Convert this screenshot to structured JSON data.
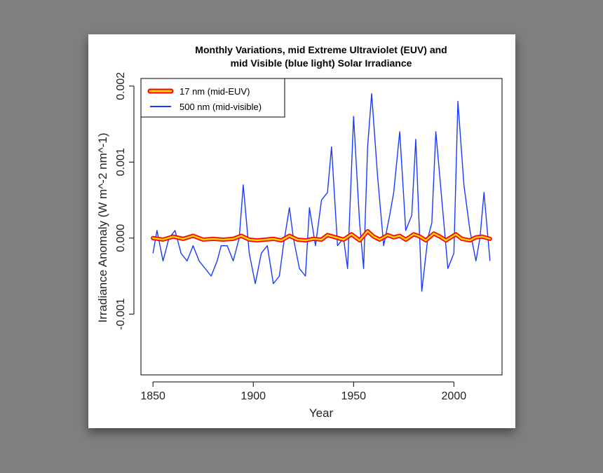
{
  "chart_data": {
    "type": "line",
    "title_line1": "Monthly Variations, mid Extreme Ultraviolet (EUV) and",
    "title_line2": "mid Visible (blue light) Solar Irradiance",
    "xlabel": "Year",
    "ylabel": "Irradiance Anomaly (W m^-2 nm^-1)",
    "xlim": [
      1844,
      2024
    ],
    "ylim": [
      -0.0018,
      0.0021
    ],
    "x_ticks": [
      1850,
      1900,
      1950,
      2000
    ],
    "x_tick_labels": [
      "1850",
      "1900",
      "1950",
      "2000"
    ],
    "y_ticks": [
      -0.001,
      0.0,
      0.001,
      0.002
    ],
    "y_tick_labels": [
      "-0.001",
      "0.000",
      "0.001",
      "0.002"
    ],
    "legend_position": "top-left",
    "grid": false,
    "series": [
      {
        "name": "17 nm (mid-EUV)",
        "color": "#ff0000",
        "inner_color": "#ffd400",
        "x": [
          1850,
          1855,
          1860,
          1865,
          1870,
          1875,
          1880,
          1885,
          1890,
          1894,
          1898,
          1902,
          1906,
          1910,
          1914,
          1918,
          1922,
          1926,
          1930,
          1934,
          1937,
          1941,
          1945,
          1949,
          1953,
          1957,
          1960,
          1963,
          1967,
          1970,
          1973,
          1976,
          1980,
          1983,
          1986,
          1990,
          1993,
          1996,
          2001,
          2004,
          2008,
          2011,
          2014,
          2018
        ],
        "values": [
          0.0,
          -2e-05,
          2e-05,
          -1e-05,
          3e-05,
          -2e-05,
          -1e-05,
          -2e-05,
          -1e-05,
          3e-05,
          -2e-05,
          -3e-05,
          -2e-05,
          -1e-05,
          -3e-05,
          3e-05,
          -2e-05,
          -3e-05,
          -1e-05,
          -2e-05,
          4e-05,
          1e-05,
          -2e-05,
          5e-05,
          -3e-05,
          9e-05,
          2e-05,
          -2e-05,
          4e-05,
          1e-05,
          3e-05,
          -2e-05,
          5e-05,
          2e-05,
          -3e-05,
          6e-05,
          2e-05,
          -3e-05,
          5e-05,
          -1e-05,
          -3e-05,
          1e-05,
          2e-05,
          -1e-05
        ]
      },
      {
        "name": "500 nm (mid-visible)",
        "color": "#1a3bff",
        "x": [
          1850,
          1852,
          1855,
          1858,
          1861,
          1864,
          1867,
          1870,
          1873,
          1876,
          1879,
          1882,
          1884,
          1887,
          1890,
          1893,
          1895,
          1898,
          1901,
          1904,
          1907,
          1910,
          1913,
          1915,
          1918,
          1920,
          1923,
          1926,
          1928,
          1931,
          1934,
          1937,
          1939,
          1942,
          1945,
          1947,
          1950,
          1953,
          1955,
          1957,
          1959,
          1962,
          1965,
          1968,
          1970,
          1973,
          1976,
          1979,
          1981,
          1984,
          1987,
          1989,
          1991,
          1994,
          1997,
          2000,
          2002,
          2005,
          2008,
          2011,
          2013,
          2015,
          2018
        ],
        "values": [
          -0.0002,
          0.0001,
          -0.0003,
          0.0,
          0.0001,
          -0.0002,
          -0.0003,
          -0.0001,
          -0.0003,
          -0.0004,
          -0.0005,
          -0.0003,
          -0.0001,
          -0.0001,
          -0.0003,
          0.0,
          0.0007,
          -0.0002,
          -0.0006,
          -0.0002,
          -0.0001,
          -0.0006,
          -0.0005,
          -0.0001,
          0.0004,
          0.0,
          -0.0004,
          -0.0005,
          0.0004,
          -0.0001,
          0.0005,
          0.0006,
          0.0012,
          -0.0001,
          0.0,
          -0.0004,
          0.0016,
          0.0002,
          -0.0004,
          0.0012,
          0.0019,
          0.0008,
          -0.0001,
          0.0003,
          0.0006,
          0.0014,
          0.0001,
          0.0003,
          0.0013,
          -0.0007,
          0.0,
          0.0002,
          0.0014,
          0.0005,
          -0.0004,
          -0.0002,
          0.0018,
          0.0007,
          0.0001,
          -0.0003,
          0.0,
          0.0006,
          -0.0003
        ]
      }
    ]
  }
}
